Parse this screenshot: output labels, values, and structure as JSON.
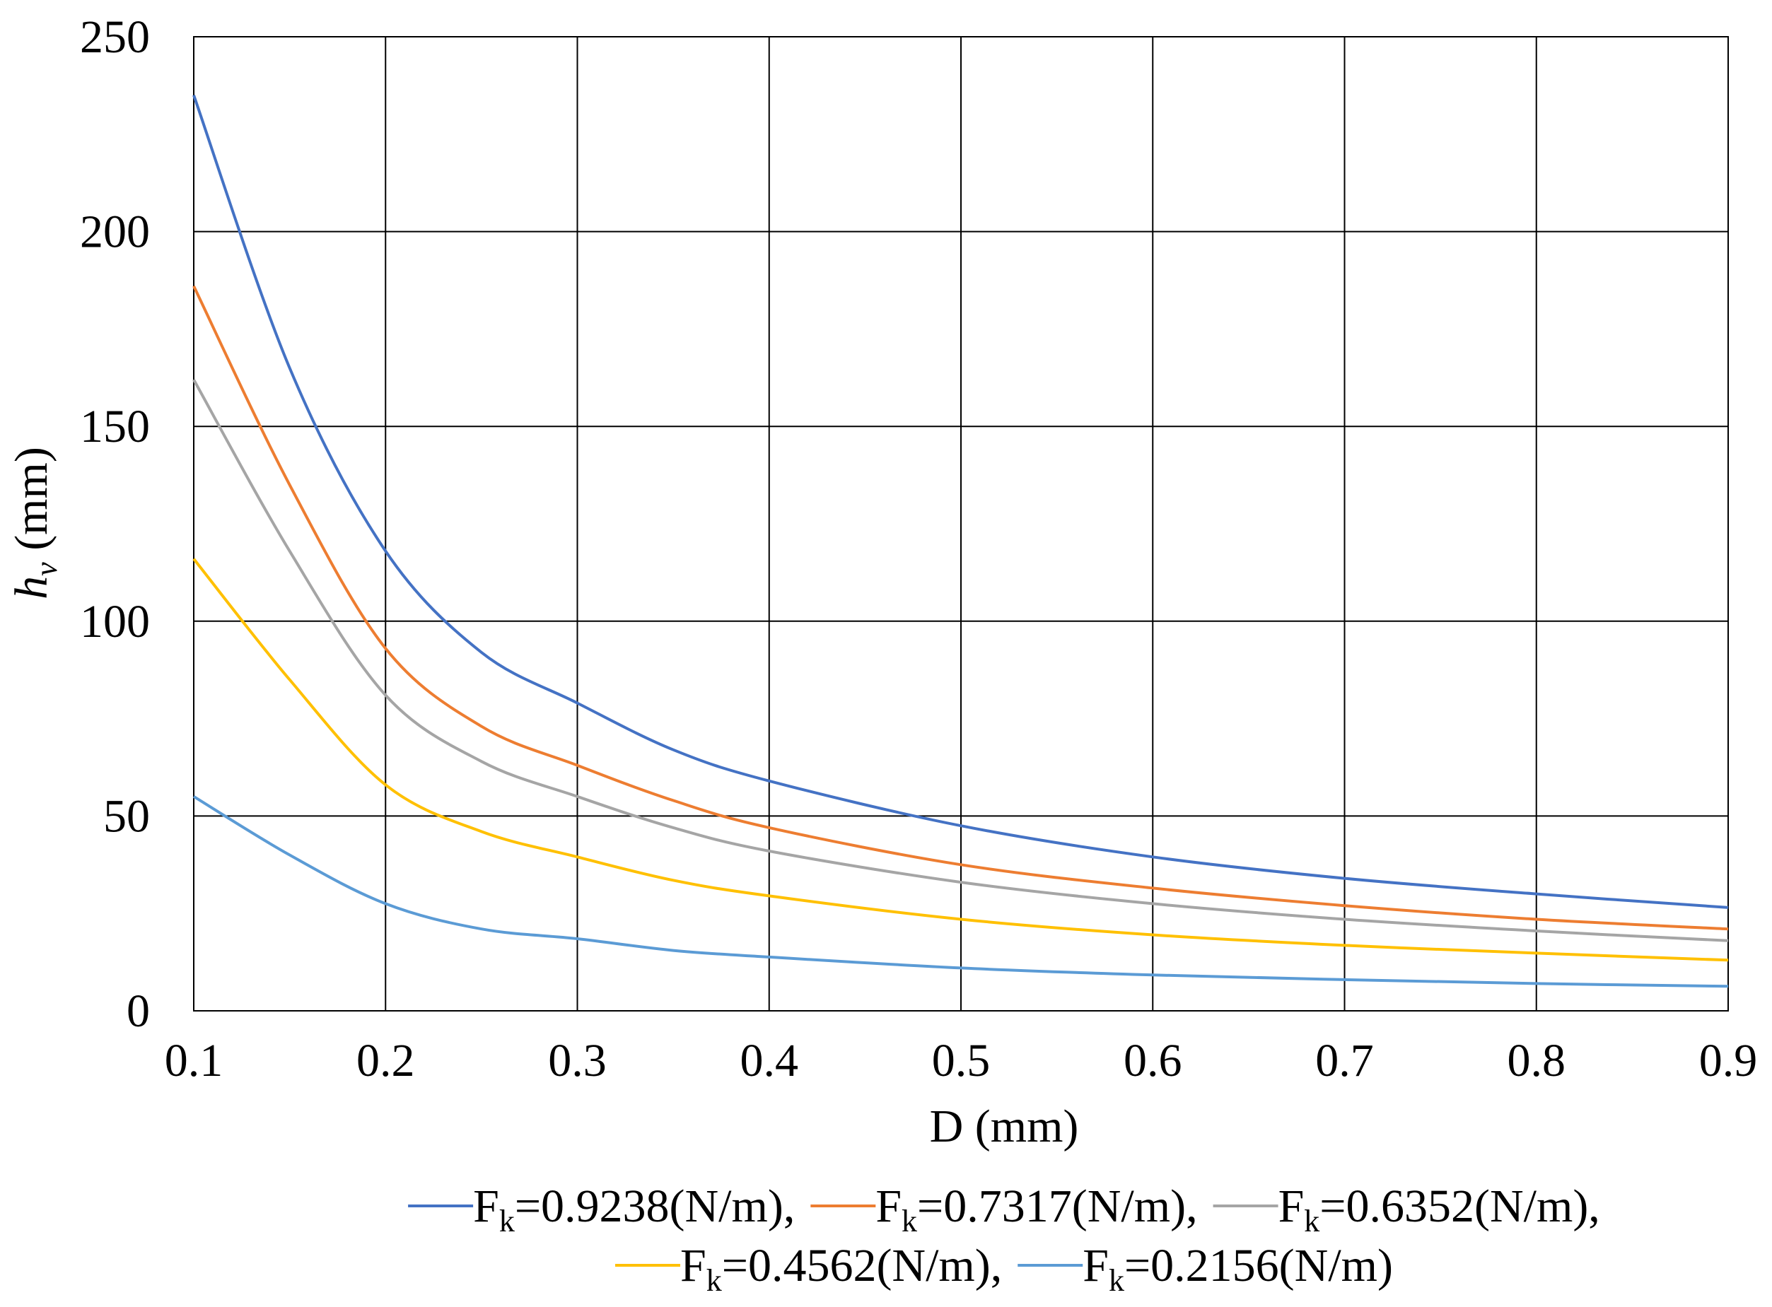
{
  "chart_data": {
    "type": "line",
    "title": "",
    "xlabel": "D (mm)",
    "ylabel": "h",
    "ylabel_sub": "v",
    "ylabel_unit": " (mm)",
    "xlim": [
      0.1,
      0.9
    ],
    "ylim": [
      0,
      250
    ],
    "grid": true,
    "legend_position": "bottom",
    "x_ticks": [
      "0.1",
      "0.2",
      "0.3",
      "0.4",
      "0.5",
      "0.6",
      "0.7",
      "0.8",
      "0.9"
    ],
    "y_ticks": [
      "0",
      "50",
      "100",
      "150",
      "200",
      "250"
    ],
    "x": [
      0.1,
      0.15,
      0.2,
      0.25,
      0.3,
      0.35,
      0.4,
      0.5,
      0.6,
      0.7,
      0.8,
      0.9
    ],
    "series": [
      {
        "name": "F",
        "sub": "k",
        "label": "=0.9238(N/m),",
        "color": "#4472C4",
        "values": [
          235,
          165,
          118,
          92,
          79,
          67,
          59,
          47.5,
          39.5,
          34,
          30,
          26.5
        ]
      },
      {
        "name": "F",
        "sub": "k",
        "label": "=0.7317(N/m),",
        "color": "#ED7D31",
        "values": [
          186,
          135,
          93,
          73,
          63,
          54,
          47,
          37.5,
          31.5,
          27,
          23.5,
          21
        ]
      },
      {
        "name": "F",
        "sub": "k",
        "label": "=0.6352(N/m),",
        "color": "#A5A5A5",
        "values": [
          162,
          118,
          81,
          64,
          55,
          47,
          41,
          33,
          27.5,
          23.5,
          20.5,
          18
        ]
      },
      {
        "name": "F",
        "sub": "k",
        "label": "=0.4562(N/m),",
        "color": "#FFC000",
        "values": [
          116,
          85,
          58,
          46,
          39.5,
          33.5,
          29.5,
          23.5,
          19.5,
          16.8,
          14.8,
          13
        ]
      },
      {
        "name": "F",
        "sub": "k",
        "label": "=0.2156(N/m)",
        "color": "#5B9BD5",
        "values": [
          55,
          40,
          27.5,
          21,
          18.5,
          15.5,
          13.8,
          11,
          9.2,
          8,
          7,
          6.3
        ]
      }
    ]
  }
}
